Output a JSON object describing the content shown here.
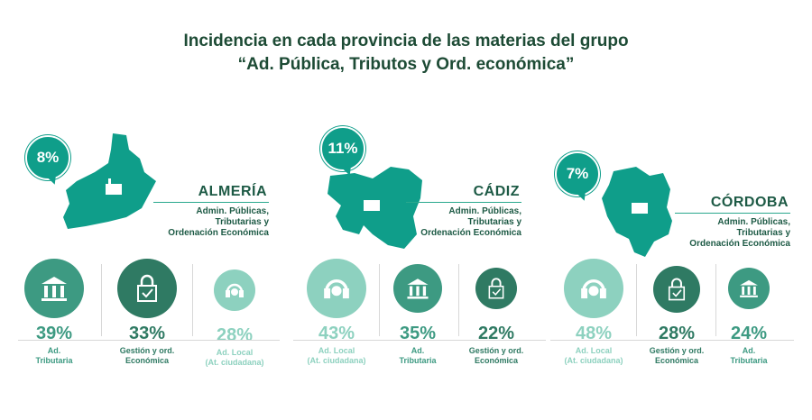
{
  "title": {
    "line1": "Incidencia en cada provincia de las materias del grupo",
    "line2": "“Ad. Pública, Tributos y Ord. económica”"
  },
  "colors": {
    "title": "#1d4b35",
    "map": "#0f9e8a",
    "dark": "#2f7a63",
    "mid": "#3d9a82",
    "light": "#8dd1bf"
  },
  "provinces": [
    {
      "name": "ALMERÍA",
      "percent": "8%",
      "subtitle": [
        "Admin. Públicas,",
        "Tributarias y",
        "Ordenación Económica"
      ],
      "items": [
        {
          "icon": "courthouse-icon",
          "percent": "39%",
          "label": [
            "Ad.",
            "Tributaria"
          ]
        },
        {
          "icon": "lock-icon",
          "percent": "33%",
          "label": [
            "Gestión y ord.",
            "Económica"
          ]
        },
        {
          "icon": "headset-icon",
          "percent": "28%",
          "label": [
            "Ad. Local",
            "(At. ciudadana)"
          ]
        }
      ]
    },
    {
      "name": "CÁDIZ",
      "percent": "11%",
      "subtitle": [
        "Admin. Públicas,",
        "Tributarias y",
        "Ordenación Económica"
      ],
      "items": [
        {
          "icon": "headset-icon",
          "percent": "43%",
          "label": [
            "Ad. Local",
            "(At. ciudadana)"
          ]
        },
        {
          "icon": "courthouse-icon",
          "percent": "35%",
          "label": [
            "Ad.",
            "Tributaria"
          ]
        },
        {
          "icon": "lock-icon",
          "percent": "22%",
          "label": [
            "Gestión y ord.",
            "Económica"
          ]
        }
      ]
    },
    {
      "name": "CÓRDOBA",
      "percent": "7%",
      "subtitle": [
        "Admin. Públicas,",
        "Tributarias y",
        "Ordenación Económica"
      ],
      "items": [
        {
          "icon": "headset-icon",
          "percent": "48%",
          "label": [
            "Ad. Local",
            "(At. ciudadana)"
          ]
        },
        {
          "icon": "lock-icon",
          "percent": "28%",
          "label": [
            "Gestión y ord.",
            "Económica"
          ]
        },
        {
          "icon": "courthouse-icon",
          "percent": "24%",
          "label": [
            "Ad.",
            "Tributaria"
          ]
        }
      ]
    }
  ]
}
